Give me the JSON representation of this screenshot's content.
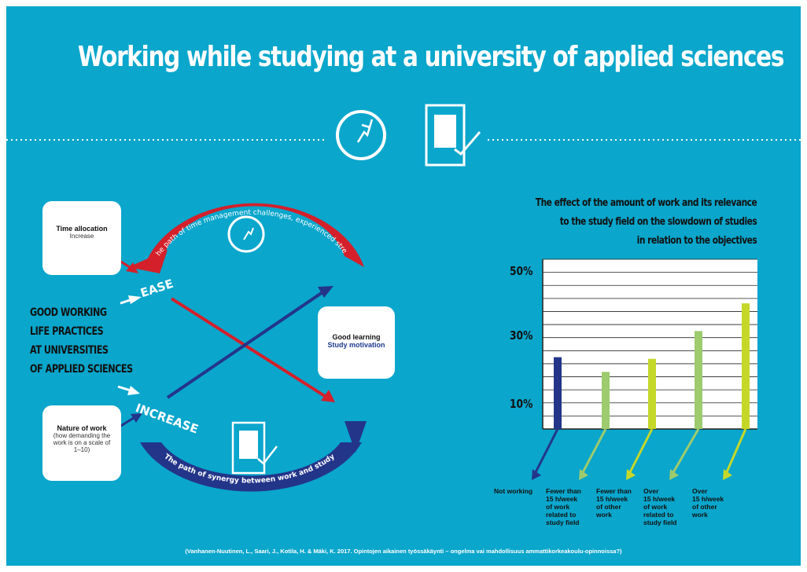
{
  "title": "Working while studying at a university of applied sciences",
  "left": {
    "time_box": {
      "heading": "Time allocation",
      "sub": "Increase"
    },
    "nature_box": {
      "heading": "Nature of work",
      "sub": "(how demanding the work is on a scale of 1–10)"
    },
    "learning_box": {
      "heading": "Good learning",
      "sub": "Study motivation"
    },
    "top_path": "The path of time management challenges, experienced stress",
    "bottom_path": "The path of synergy between work and study",
    "ease": "EASE",
    "increase": "INCREASE",
    "central_lines": [
      "GOOD WORKING",
      "LIFE PRACTICES",
      "AT UNIVERSITIES",
      "OF APPLIED SCIENCES"
    ],
    "colors": {
      "red": "#d3202b",
      "navy": "#233589",
      "white": "#ffffff"
    }
  },
  "icons": [
    "clock-icon",
    "document-check-icon"
  ],
  "chart_data": {
    "type": "bar",
    "title_lines": [
      "The effect of the amount of work and its relevance",
      "to the study field on the slowdown of studies",
      "in relation to the objectives"
    ],
    "y_ticks": [
      "50%",
      "30%",
      "10%"
    ],
    "categories": [
      "Not working",
      "Fewer than\n15 h/week\nof work\nrelated to\nstudy field",
      "Fewer than\n15 h/week\nof other\nwork",
      "Over\n15 h/week\nof work\nrelated to\nstudy field",
      "Over\n15 h/week\nof other\nwork"
    ],
    "values": [
      22,
      17.5,
      21.5,
      30,
      38.5
    ],
    "ylim": [
      0,
      52
    ],
    "grid": true,
    "colors": [
      "#233589",
      "#9dcb6d",
      "#c5d82a",
      "#9dcb6d",
      "#c5d82a"
    ]
  },
  "source": "(Vanhanen-Nuutinen, L., Saari, J., Kotila, H. & Mäki, K. 2017. Opintojen aikainen työssäkäynti – ongelma vai mahdollisuus ammattikorkeakoulu-opinnoissa?)"
}
